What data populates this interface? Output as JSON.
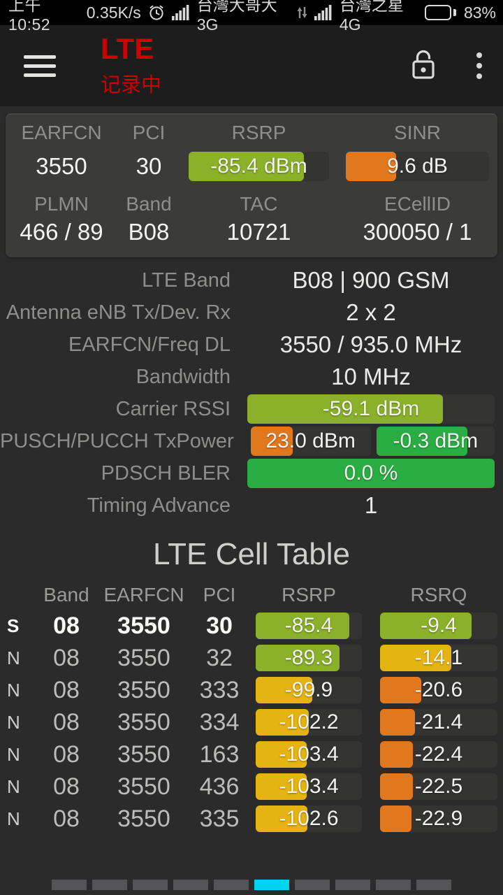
{
  "status_bar": {
    "time": "上午10:52",
    "net_speed": "0.35K/s",
    "carrier1": "台灣大哥大 3G",
    "carrier2": "台灣之星 4G",
    "battery_pct": "83%",
    "battery_level": 83
  },
  "app_bar": {
    "title": "LTE",
    "subtitle": "记录中",
    "title_color": "#d00000"
  },
  "icons": {
    "menu": "hamburger-icon",
    "lock": "unlock-icon",
    "overflow": "three-dot-menu-icon",
    "alarm": "alarm-clock-icon",
    "signal": "signal-bars-icon",
    "data": "data-arrows-icon",
    "battery": "battery-icon"
  },
  "colors": {
    "olive": "#8bb029",
    "green": "#2aae44",
    "yellow": "#e5b312",
    "orange": "#e2781e",
    "track": "#343433",
    "accent_cyan": "#00d3f0",
    "dot_gray": "#545456"
  },
  "summary": {
    "row1": {
      "labels": [
        "EARFCN",
        "PCI",
        "RSRP",
        "SINR"
      ],
      "earfcn": "3550",
      "pci": "30",
      "rsrp": {
        "value": "-85.4 dBm",
        "fill": 82,
        "color": "#8bb029"
      },
      "sinr": {
        "value": "9.6 dB",
        "fill": 35,
        "color": "#e2781e"
      }
    },
    "row2": {
      "labels": [
        "PLMN",
        "Band",
        "TAC",
        "ECellID"
      ],
      "plmn": "466 / 89",
      "band": "B08",
      "tac": "10721",
      "ecellid": "300050 / 1"
    }
  },
  "details": [
    {
      "label": "LTE Band",
      "value": "B08 | 900 GSM"
    },
    {
      "label": "Antenna eNB Tx/Dev. Rx",
      "value": "2 x 2"
    },
    {
      "label": "EARFCN/Freq DL",
      "value": "3550 / 935.0 MHz"
    },
    {
      "label": "Bandwidth",
      "value": "10 MHz"
    },
    {
      "label": "Carrier RSSI",
      "bar": {
        "value": "-59.1 dBm",
        "fill": 79,
        "color": "#8bb029"
      }
    },
    {
      "label": "PUSCH/PUCCH TxPower",
      "bar_left": {
        "value": "23.0 dBm",
        "fill": 35,
        "color": "#e2781e"
      },
      "bar_right": {
        "value": "-0.3 dBm",
        "fill": 77,
        "color": "#2aae44"
      }
    },
    {
      "label": "PDSCH BLER",
      "bar": {
        "value": "0.0 %",
        "fill": 100,
        "color": "#2aae44"
      }
    },
    {
      "label": "Timing Advance",
      "value": "1"
    }
  ],
  "cell_table": {
    "title": "LTE Cell Table",
    "headers": {
      "band": "Band",
      "earfcn": "EARFCN",
      "pci": "PCI",
      "rsrp": "RSRP",
      "rsrq": "RSRQ"
    },
    "rows": [
      {
        "type": "S",
        "band": "08",
        "earfcn": "3550",
        "pci": "30",
        "rsrp": {
          "value": "-85.4",
          "fill": 88,
          "color": "#8bb029"
        },
        "rsrq": {
          "value": "-9.4",
          "fill": 78,
          "color": "#8bb029"
        }
      },
      {
        "type": "N",
        "band": "08",
        "earfcn": "3550",
        "pci": "32",
        "rsrp": {
          "value": "-89.3",
          "fill": 79,
          "color": "#8bb029"
        },
        "rsrq": {
          "value": "-14.1",
          "fill": 61,
          "color": "#e5b312"
        }
      },
      {
        "type": "N",
        "band": "08",
        "earfcn": "3550",
        "pci": "333",
        "rsrp": {
          "value": "-99.9",
          "fill": 53,
          "color": "#e5b312"
        },
        "rsrq": {
          "value": "-20.6",
          "fill": 35,
          "color": "#e2781e"
        }
      },
      {
        "type": "N",
        "band": "08",
        "earfcn": "3550",
        "pci": "334",
        "rsrp": {
          "value": "-102.2",
          "fill": 50,
          "color": "#e5b312"
        },
        "rsrq": {
          "value": "-21.4",
          "fill": 30,
          "color": "#e2781e"
        }
      },
      {
        "type": "N",
        "band": "08",
        "earfcn": "3550",
        "pci": "163",
        "rsrp": {
          "value": "-103.4",
          "fill": 48,
          "color": "#e5b312"
        },
        "rsrq": {
          "value": "-22.4",
          "fill": 28,
          "color": "#e2781e"
        }
      },
      {
        "type": "N",
        "band": "08",
        "earfcn": "3550",
        "pci": "436",
        "rsrp": {
          "value": "-103.4",
          "fill": 48,
          "color": "#e5b312"
        },
        "rsrq": {
          "value": "-22.5",
          "fill": 28,
          "color": "#e2781e"
        }
      },
      {
        "type": "N",
        "band": "08",
        "earfcn": "3550",
        "pci": "335",
        "rsrp": {
          "value": "-102.6",
          "fill": 49,
          "color": "#e5b312"
        },
        "rsrq": {
          "value": "-22.9",
          "fill": 27,
          "color": "#e2781e"
        }
      }
    ]
  },
  "pagination": {
    "bars": 10,
    "active_index": 5,
    "active_color": "#00d3f0",
    "bar_color": "#545456"
  }
}
